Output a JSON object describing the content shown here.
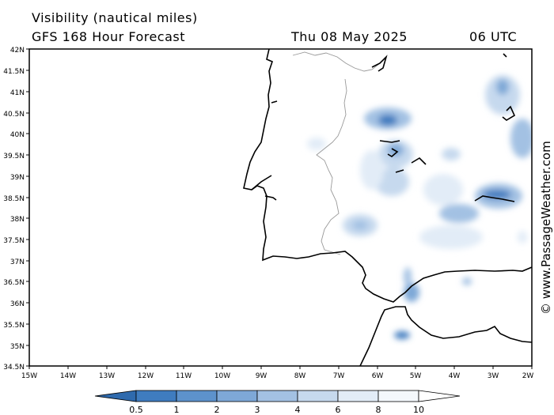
{
  "header": {
    "title": "Visibility (nautical miles)",
    "subtitle": "GFS 168 Hour Forecast",
    "date": "Thu 08 May 2025",
    "time": "06 UTC"
  },
  "map": {
    "lat_labels": [
      "42N",
      "41.5N",
      "41N",
      "40.5N",
      "40N",
      "39.5N",
      "39N",
      "38.5N",
      "38N",
      "37.5N",
      "37N",
      "36.5N",
      "36N",
      "35.5N",
      "35N",
      "34.5N"
    ],
    "lon_labels": [
      "15W",
      "14W",
      "13W",
      "12W",
      "11W",
      "10W",
      "9W",
      "8W",
      "7W",
      "6W",
      "5W",
      "4W",
      "3W",
      "2W"
    ],
    "lat_range": [
      34.5,
      42
    ],
    "lon_range": [
      -15,
      -2
    ],
    "ocean_color": "#ffffff",
    "coast_color": "#000000",
    "border_color": "#999999"
  },
  "legend": {
    "labels": [
      "0.5",
      "1",
      "2",
      "3",
      "4",
      "6",
      "8",
      "10"
    ],
    "colors": [
      "#2f6aad",
      "#3f7cbf",
      "#5d92cc",
      "#7ea8d7",
      "#a3c1e3",
      "#c6d9ee",
      "#e2ecf7",
      "#ffffff"
    ]
  },
  "watermark": "© www.PassageWeather.com"
}
